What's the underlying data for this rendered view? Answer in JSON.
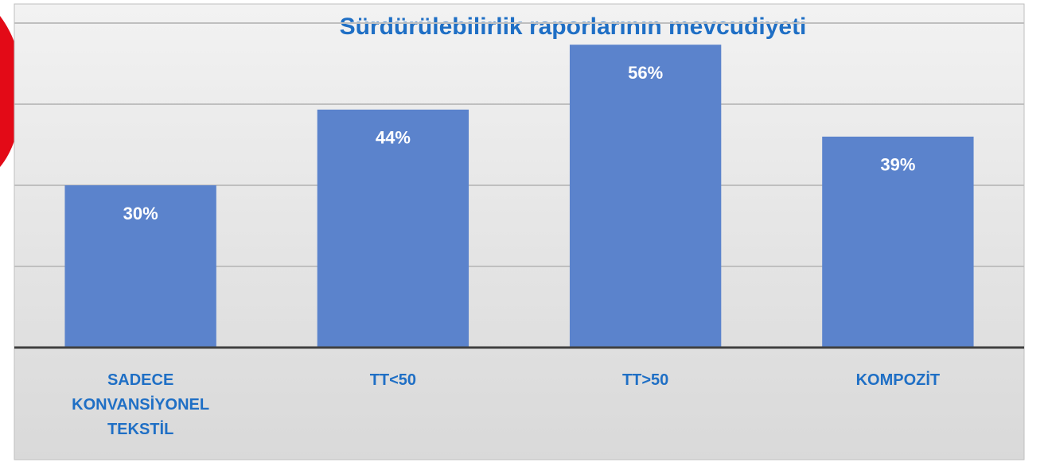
{
  "chart_data": {
    "type": "bar",
    "title": "Sürdürülebilirlik raporlarının mevcudiyeti",
    "categories": [
      "SADECE KONVANSİYONEL TEKSTİL",
      "TT<50",
      "TT>50",
      "KOMPOZİT"
    ],
    "values": [
      30,
      44,
      56,
      39
    ],
    "value_labels": [
      "30%",
      "44%",
      "56%",
      "39%"
    ],
    "color": "#5b83cc",
    "ylim": [
      0,
      60
    ],
    "yticks": [
      0,
      15,
      30,
      45,
      60
    ],
    "grid": true
  }
}
